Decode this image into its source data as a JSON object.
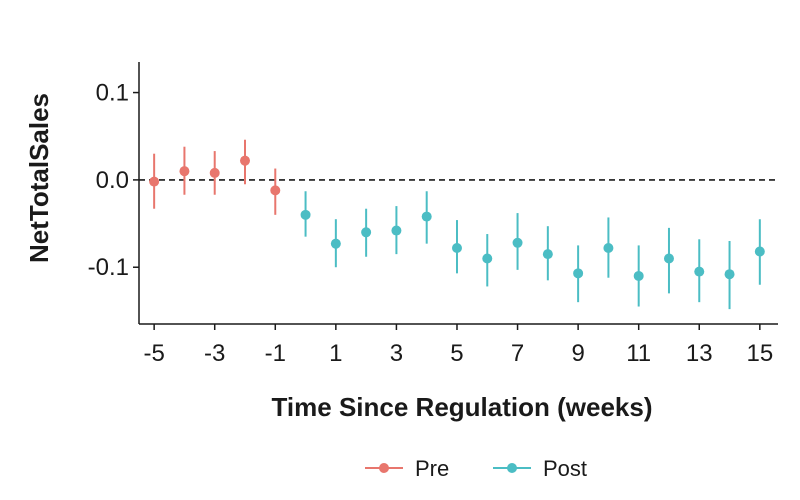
{
  "chart_data": {
    "type": "scatter",
    "title": "",
    "xlabel": "Time Since Regulation (weeks)",
    "ylabel": "NetTotalSales",
    "xlim": [
      -5.5,
      15.6
    ],
    "ylim": [
      -0.165,
      0.135
    ],
    "xticks": [
      -5,
      -3,
      -1,
      1,
      3,
      5,
      7,
      9,
      11,
      13,
      15
    ],
    "xtick_labels": [
      "-5",
      "-3",
      "-1",
      "1",
      "3",
      "5",
      "7",
      "9",
      "11",
      "13",
      "15"
    ],
    "yticks": [
      0.1,
      0.0,
      -0.1
    ],
    "ytick_labels": [
      "0.1",
      "0.0",
      "-0.1"
    ],
    "reference_line": {
      "y": 0,
      "style": "dashed"
    },
    "grid": false,
    "legend_position": "bottom",
    "series": [
      {
        "name": "Pre",
        "color": "#E8766D",
        "points": [
          {
            "x": -5,
            "y": -0.002,
            "lo": -0.033,
            "hi": 0.03
          },
          {
            "x": -4,
            "y": 0.01,
            "lo": -0.017,
            "hi": 0.038
          },
          {
            "x": -3,
            "y": 0.008,
            "lo": -0.017,
            "hi": 0.033
          },
          {
            "x": -2,
            "y": 0.022,
            "lo": -0.005,
            "hi": 0.046
          },
          {
            "x": -1,
            "y": -0.012,
            "lo": -0.04,
            "hi": 0.013
          }
        ]
      },
      {
        "name": "Post",
        "color": "#4BBDC4",
        "points": [
          {
            "x": 0,
            "y": -0.04,
            "lo": -0.065,
            "hi": -0.013
          },
          {
            "x": 1,
            "y": -0.073,
            "lo": -0.1,
            "hi": -0.045
          },
          {
            "x": 2,
            "y": -0.06,
            "lo": -0.088,
            "hi": -0.033
          },
          {
            "x": 3,
            "y": -0.058,
            "lo": -0.085,
            "hi": -0.03
          },
          {
            "x": 4,
            "y": -0.042,
            "lo": -0.073,
            "hi": -0.013
          },
          {
            "x": 5,
            "y": -0.078,
            "lo": -0.107,
            "hi": -0.046
          },
          {
            "x": 6,
            "y": -0.09,
            "lo": -0.122,
            "hi": -0.062
          },
          {
            "x": 7,
            "y": -0.072,
            "lo": -0.103,
            "hi": -0.038
          },
          {
            "x": 8,
            "y": -0.085,
            "lo": -0.115,
            "hi": -0.053
          },
          {
            "x": 9,
            "y": -0.107,
            "lo": -0.14,
            "hi": -0.075
          },
          {
            "x": 10,
            "y": -0.078,
            "lo": -0.112,
            "hi": -0.043
          },
          {
            "x": 11,
            "y": -0.11,
            "lo": -0.145,
            "hi": -0.075
          },
          {
            "x": 12,
            "y": -0.09,
            "lo": -0.13,
            "hi": -0.055
          },
          {
            "x": 13,
            "y": -0.105,
            "lo": -0.14,
            "hi": -0.068
          },
          {
            "x": 14,
            "y": -0.108,
            "lo": -0.148,
            "hi": -0.07
          },
          {
            "x": 15,
            "y": -0.082,
            "lo": -0.12,
            "hi": -0.045
          }
        ]
      }
    ]
  }
}
